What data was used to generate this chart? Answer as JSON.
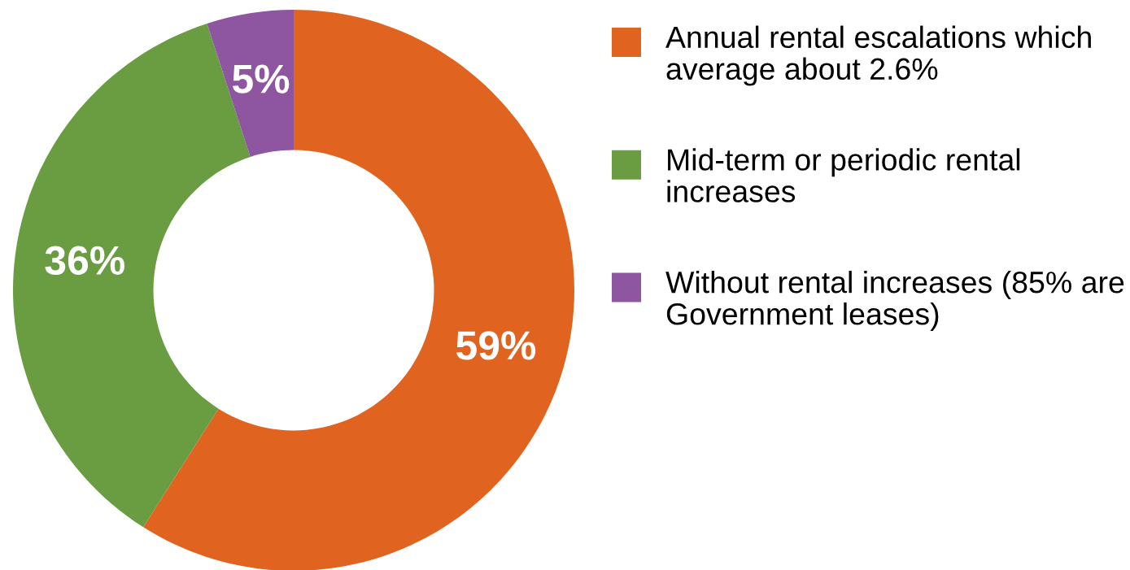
{
  "chart_data": {
    "type": "donut",
    "categories": [
      "Annual rental escalations which average about 2.6%",
      "Mid-term or periodic rental increases",
      "Without rental increases (85% are Government leases)"
    ],
    "values": [
      59,
      36,
      5
    ],
    "colors": [
      "#e06420",
      "#6a9c42",
      "#8e56a0"
    ],
    "value_labels": [
      "59%",
      "36%",
      "5%"
    ],
    "legend": "right"
  }
}
